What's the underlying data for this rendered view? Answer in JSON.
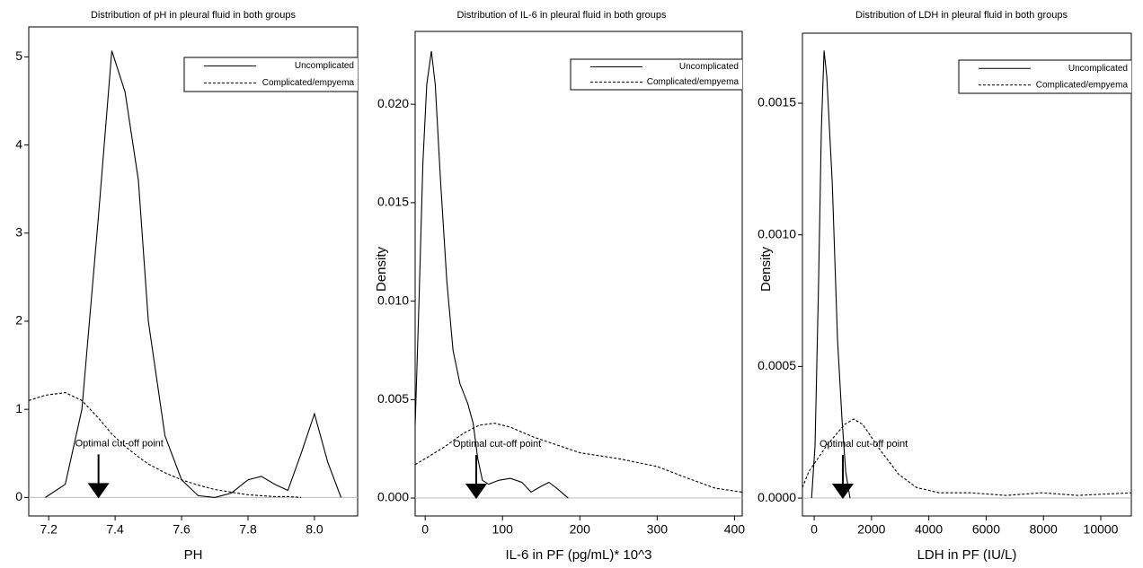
{
  "chart_data": [
    {
      "type": "line",
      "title": "Distribution of pH in pleural fluid in both groups",
      "xlabel": "PH",
      "xlim": [
        7.14,
        8.13
      ],
      "ylim": [
        -0.21,
        5.34
      ],
      "xticks": [
        7.2,
        7.4,
        7.6,
        7.8,
        {
          "value": 8,
          "label": "8.0"
        }
      ],
      "yticks": [
        0,
        1,
        2,
        3,
        4,
        5
      ],
      "legend": "top-right",
      "annotation": {
        "text": "Optimal cut-off point",
        "x": 7.35
      },
      "series": [
        {
          "name": "Uncomplicated",
          "color": "#000000",
          "linestyle": "solid",
          "x": [
            7.19,
            7.25,
            7.3,
            7.35,
            7.39,
            7.43,
            7.47,
            7.5,
            7.55,
            7.6,
            7.65,
            7.7,
            7.75,
            7.8,
            7.84,
            7.88,
            7.92,
            7.96,
            8.0,
            8.04,
            8.08
          ],
          "values": [
            0,
            0.15,
            1.0,
            3.2,
            5.07,
            4.6,
            3.6,
            2.0,
            0.7,
            0.2,
            0.02,
            0,
            0.05,
            0.2,
            0.24,
            0.15,
            0.08,
            0.5,
            0.95,
            0.4,
            0
          ]
        },
        {
          "name": "Complicated/empyema",
          "color": "#000000",
          "linestyle": "dashed",
          "x": [
            7.14,
            7.19,
            7.25,
            7.3,
            7.35,
            7.39,
            7.43,
            7.47,
            7.5,
            7.55,
            7.6,
            7.65,
            7.7,
            7.75,
            7.8,
            7.84,
            7.88,
            7.92,
            7.96
          ],
          "values": [
            1.1,
            1.16,
            1.19,
            1.1,
            0.9,
            0.72,
            0.58,
            0.46,
            0.38,
            0.28,
            0.2,
            0.14,
            0.09,
            0.06,
            0.03,
            0.02,
            0.01,
            0.01,
            0
          ]
        }
      ]
    },
    {
      "type": "line",
      "title": "Distribution of IL-6 in pleural fluid in both groups",
      "xlabel": "IL-6 in PF (pg/mL)* 10^3",
      "ylabel": "Density",
      "xlim": [
        -13,
        410
      ],
      "ylim": [
        -0.00091,
        0.0237
      ],
      "xticks": [
        0,
        100,
        200,
        300,
        400
      ],
      "yticks": [
        {
          "value": 0,
          "label": "0.000"
        },
        {
          "value": 0.005,
          "label": "0.005"
        },
        {
          "value": 0.01,
          "label": "0.010"
        },
        {
          "value": 0.015,
          "label": "0.015"
        },
        {
          "value": 0.02,
          "label": "0.020"
        }
      ],
      "legend": "top-right",
      "annotation": {
        "text": "Optimal cut-off point",
        "x": 66
      },
      "series": [
        {
          "name": "Uncomplicated",
          "color": "#000000",
          "linestyle": "solid",
          "x": [
            -13,
            -8,
            -3,
            2,
            8,
            13,
            20,
            28,
            36,
            45,
            55,
            62,
            68,
            74,
            82,
            95,
            110,
            125,
            137,
            150,
            160,
            170,
            185
          ],
          "values": [
            0.0037,
            0.01,
            0.017,
            0.021,
            0.0227,
            0.021,
            0.016,
            0.011,
            0.0075,
            0.0058,
            0.0048,
            0.0038,
            0.002,
            0.0009,
            0.0007,
            0.0009,
            0.001,
            0.0008,
            0.0003,
            0.0006,
            0.0008,
            0.0005,
            0
          ]
        },
        {
          "name": "Complicated/empyema",
          "color": "#000000",
          "linestyle": "dashed",
          "x": [
            -13,
            0,
            25,
            50,
            70,
            90,
            110,
            140,
            170,
            200,
            250,
            300,
            340,
            375,
            410
          ],
          "values": [
            0.0017,
            0.002,
            0.0026,
            0.0033,
            0.0037,
            0.0038,
            0.0036,
            0.0031,
            0.0027,
            0.0023,
            0.002,
            0.0016,
            0.001,
            0.0005,
            0.0003
          ]
        }
      ]
    },
    {
      "type": "line",
      "title": "Distribution of LDH in pleural fluid in both groups",
      "xlabel": "LDH in PF (IU/L)",
      "ylabel": "Density",
      "xlim": [
        -410,
        11066
      ],
      "ylim": [
        -6.8e-05,
        0.001766
      ],
      "xticks": [
        0,
        2000,
        4000,
        6000,
        8000,
        10000
      ],
      "yticks": [
        {
          "value": 0,
          "label": "0.0000"
        },
        {
          "value": 0.0005,
          "label": "0.0005"
        },
        {
          "value": 0.001,
          "label": "0.0010"
        },
        {
          "value": 0.0015,
          "label": "0.0015"
        }
      ],
      "legend": "top-right",
      "annotation": {
        "text": "Optimal cut-off point",
        "x": 1000
      },
      "series": [
        {
          "name": "Uncomplicated",
          "color": "#000000",
          "linestyle": "solid",
          "x": [
            -90,
            30,
            150,
            250,
            345,
            440,
            630,
            815,
            970,
            1100,
            1250
          ],
          "values": [
            0,
            0.0002,
            0.0008,
            0.0014,
            0.0017,
            0.0016,
            0.0012,
            0.0006,
            0.0003,
            0.0001,
            0
          ]
        },
        {
          "name": "Complicated/empyema",
          "color": "#000000",
          "linestyle": "dashed",
          "x": [
            -410,
            -190,
            440,
            1065,
            1380,
            1690,
            2320,
            2950,
            3570,
            4360,
            5450,
            6700,
            7960,
            9200,
            11066
          ],
          "values": [
            4e-05,
            0.0001,
            0.0002,
            0.00028,
            0.0003,
            0.00028,
            0.00018,
            9e-05,
            4e-05,
            2e-05,
            2e-05,
            1e-05,
            2e-05,
            1e-05,
            2e-05
          ]
        }
      ]
    }
  ]
}
